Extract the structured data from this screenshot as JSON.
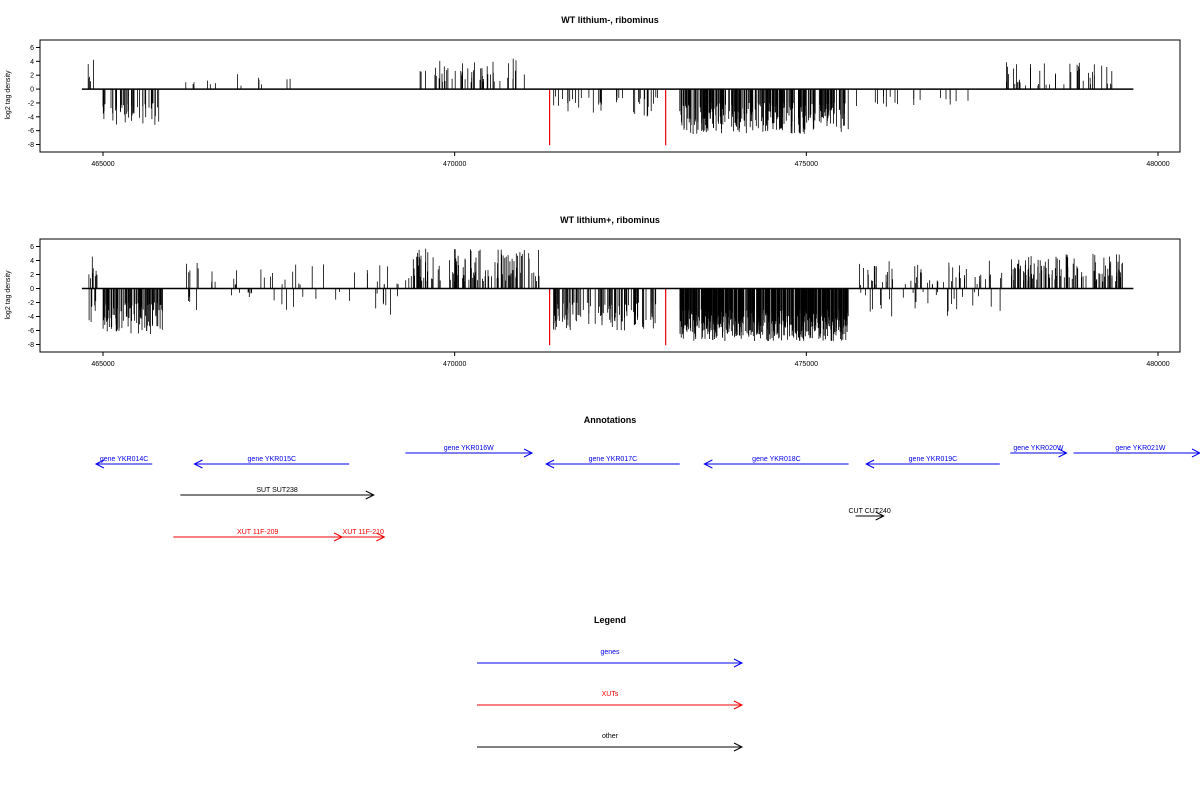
{
  "chart_data": [
    {
      "type": "bar",
      "title": "WT lithium-, ribominus",
      "ylabel": "log2 tag density",
      "xlabel": "",
      "xlim": [
        464000,
        480500
      ],
      "ylim": [
        -8.5,
        6.5
      ],
      "xticks": [
        465000,
        470000,
        475000,
        480000
      ],
      "xtick_labels": [
        "465000",
        "470000",
        "475000",
        "480000"
      ],
      "yticks": [
        6,
        4,
        2,
        0,
        -2,
        -4,
        -6,
        -8
      ],
      "ytick_labels": [
        "6",
        "4",
        "2",
        "0",
        "-2",
        "-4",
        "-6",
        "-8"
      ],
      "baseline": {
        "from": 464700,
        "to": 479650
      },
      "segments": [
        {
          "x0": 464780,
          "x1": 464900,
          "polarity": "pos",
          "min": 1.0,
          "max": 5.0,
          "density": 0.04,
          "seed": 11
        },
        {
          "x0": 465000,
          "x1": 465800,
          "polarity": "neg",
          "min": 2.0,
          "max": 5.3,
          "density": 0.06,
          "seed": 12
        },
        {
          "x0": 466100,
          "x1": 467700,
          "polarity": "pos",
          "min": 0.5,
          "max": 2.5,
          "density": 0.008,
          "seed": 13
        },
        {
          "x0": 469500,
          "x1": 471100,
          "polarity": "pos",
          "min": 1.0,
          "max": 4.8,
          "density": 0.03,
          "seed": 14
        },
        {
          "x0": 471400,
          "x1": 472900,
          "polarity": "neg",
          "min": 1.0,
          "max": 4.0,
          "density": 0.025,
          "seed": 15
        },
        {
          "x0": 473200,
          "x1": 475600,
          "polarity": "neg",
          "min": 2.0,
          "max": 6.5,
          "density": 0.13,
          "seed": 16
        },
        {
          "x0": 475700,
          "x1": 477500,
          "polarity": "neg",
          "min": 1.0,
          "max": 3.0,
          "density": 0.01,
          "seed": 17
        },
        {
          "x0": 477800,
          "x1": 479400,
          "polarity": "pos",
          "min": 0.5,
          "max": 4.0,
          "density": 0.03,
          "seed": 18
        }
      ],
      "red_markers": [
        {
          "x": 471350,
          "value": -8.1
        },
        {
          "x": 473000,
          "value": -8.1
        }
      ]
    },
    {
      "type": "bar",
      "title": "WT lithium+, ribominus",
      "ylabel": "log2 tag density",
      "xlabel": "",
      "xlim": [
        464000,
        480500
      ],
      "ylim": [
        -8.5,
        6.5
      ],
      "xticks": [
        465000,
        470000,
        475000,
        480000
      ],
      "xtick_labels": [
        "465000",
        "470000",
        "475000",
        "480000"
      ],
      "yticks": [
        6,
        4,
        2,
        0,
        -2,
        -4,
        -6,
        -8
      ],
      "ytick_labels": [
        "6",
        "4",
        "2",
        "0",
        "-2",
        "-4",
        "-6",
        "-8"
      ],
      "baseline": {
        "from": 464700,
        "to": 479650
      },
      "segments": [
        {
          "x0": 464780,
          "x1": 464950,
          "polarity": "both",
          "min": 1.0,
          "max": 5.2,
          "density": 0.08,
          "seed": 21
        },
        {
          "x0": 465000,
          "x1": 465850,
          "polarity": "neg",
          "min": 2.0,
          "max": 6.5,
          "density": 0.12,
          "seed": 22
        },
        {
          "x0": 466100,
          "x1": 469200,
          "polarity": "both",
          "min": 0.5,
          "max": 3.8,
          "density": 0.02,
          "seed": 23
        },
        {
          "x0": 469300,
          "x1": 471200,
          "polarity": "pos",
          "min": 1.0,
          "max": 5.8,
          "density": 0.06,
          "seed": 24
        },
        {
          "x0": 471400,
          "x1": 472900,
          "polarity": "neg",
          "min": 2.0,
          "max": 6.0,
          "density": 0.07,
          "seed": 25
        },
        {
          "x0": 473200,
          "x1": 475600,
          "polarity": "neg",
          "min": 3.0,
          "max": 7.5,
          "density": 0.25,
          "seed": 26
        },
        {
          "x0": 475700,
          "x1": 477800,
          "polarity": "both",
          "min": 0.5,
          "max": 4.0,
          "density": 0.04,
          "seed": 27
        },
        {
          "x0": 477900,
          "x1": 479500,
          "polarity": "pos",
          "min": 1.0,
          "max": 5.0,
          "density": 0.07,
          "seed": 28
        }
      ],
      "red_markers": [
        {
          "x": 471350,
          "value": -8.1
        },
        {
          "x": 473000,
          "value": -8.1
        }
      ]
    }
  ],
  "annotations": {
    "title": "Annotations",
    "features": [
      {
        "label": "gene YKR014C",
        "start": 464900,
        "end": 465700,
        "strand": "-",
        "row": 1,
        "category": "gene"
      },
      {
        "label": "gene YKR015C",
        "start": 466300,
        "end": 468500,
        "strand": "-",
        "row": 1,
        "category": "gene"
      },
      {
        "label": "gene YKR016W",
        "start": 469300,
        "end": 471100,
        "strand": "+",
        "row": 0,
        "category": "gene"
      },
      {
        "label": "gene YKR017C",
        "start": 471300,
        "end": 473200,
        "strand": "-",
        "row": 1,
        "category": "gene"
      },
      {
        "label": "gene YKR018C",
        "start": 473550,
        "end": 475600,
        "strand": "-",
        "row": 1,
        "category": "gene"
      },
      {
        "label": "gene YKR019C",
        "start": 475850,
        "end": 477750,
        "strand": "-",
        "row": 1,
        "category": "gene"
      },
      {
        "label": "gene YKR020W",
        "start": 477900,
        "end": 478700,
        "strand": "+",
        "row": 0,
        "category": "gene"
      },
      {
        "label": "gene YKR021W",
        "start": 478800,
        "end": 480700,
        "strand": "+",
        "row": 0,
        "category": "gene"
      },
      {
        "label": "SUT SUT238",
        "start": 466100,
        "end": 468850,
        "strand": "+",
        "row": 2,
        "category": "other"
      },
      {
        "label": "CUT CUT240",
        "start": 475700,
        "end": 476100,
        "strand": "+",
        "row": 3,
        "category": "other"
      },
      {
        "label": "XUT 11F-209",
        "start": 466000,
        "end": 468400,
        "strand": "+",
        "row": 4,
        "category": "xut"
      },
      {
        "label": "XUT 11F-210",
        "start": 468400,
        "end": 469000,
        "strand": "+",
        "row": 4,
        "category": "xut"
      }
    ]
  },
  "legend": {
    "title": "Legend",
    "items": [
      {
        "label": "genes",
        "category": "gene"
      },
      {
        "label": "XUTs",
        "category": "xut"
      },
      {
        "label": "other",
        "category": "other"
      }
    ]
  },
  "colors": {
    "gene": "#0000ee",
    "xut": "#ee0000",
    "other": "#000000",
    "bars": "#000000",
    "marker": "#ee0000"
  }
}
